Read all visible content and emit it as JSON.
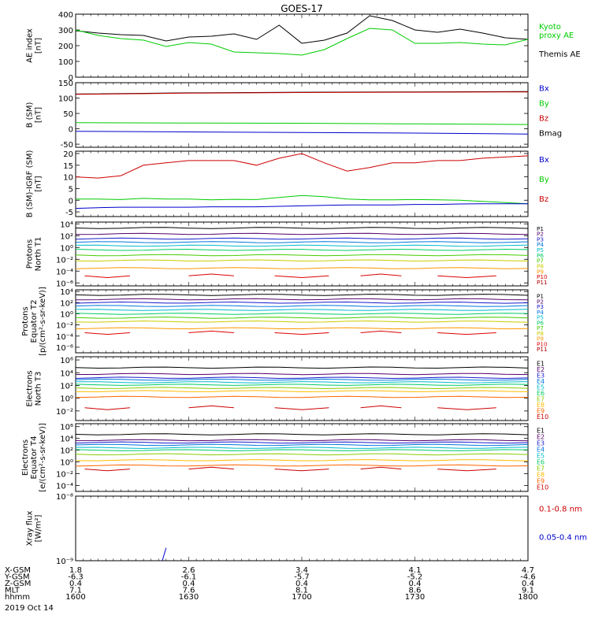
{
  "title": "GOES-17",
  "colors": {
    "black": "#000000",
    "blue": "#0000cc",
    "green": "#00cc00",
    "red": "#cc0000",
    "ch": [
      "#000000",
      "#55006a",
      "#1a1acc",
      "#0077dd",
      "#00bbcc",
      "#00cc66",
      "#44cc00",
      "#cccc00",
      "#ff9900",
      "#dd0000",
      "#aa0000"
    ],
    "ech": [
      "#000000",
      "#55006a",
      "#1a1acc",
      "#0077dd",
      "#00bbcc",
      "#00cc66",
      "#88cc00",
      "#ffbb00",
      "#ff6600",
      "#cc0000"
    ]
  },
  "time_axis": {
    "ticks": [
      "1600",
      "1630",
      "1700",
      "1730",
      "1800"
    ],
    "rows": [
      {
        "label": "X-GSM",
        "values": [
          "1.8",
          "2.6",
          "3.4",
          "4.1",
          "4.7"
        ]
      },
      {
        "label": "Y-GSM",
        "values": [
          "-6.3",
          "-6.1",
          "-5.7",
          "-5.2",
          "-4.6"
        ]
      },
      {
        "label": "Z-GSM",
        "values": [
          "0.4",
          "0.4",
          "0.4",
          "0.4",
          "0.4"
        ]
      },
      {
        "label": "MLT",
        "values": [
          "7.1",
          "7.6",
          "8.1",
          "8.6",
          "9.1"
        ]
      },
      {
        "label": "hhmm",
        "values": [
          "1600",
          "1630",
          "1700",
          "1730",
          "1800"
        ]
      }
    ],
    "date": "2019 Oct 14"
  },
  "chart_data": [
    {
      "type": "line",
      "ylabel": "AE index\n[nT]",
      "ylim": [
        0,
        400
      ],
      "yticks": [
        "0",
        "100",
        "200",
        "300",
        "400"
      ],
      "x": [
        1600,
        1606,
        1612,
        1618,
        1624,
        1630,
        1636,
        1642,
        1648,
        1654,
        1700,
        1706,
        1712,
        1718,
        1724,
        1730,
        1736,
        1742,
        1748,
        1754,
        1800
      ],
      "series": [
        {
          "name": "Themis AE",
          "color": "black",
          "values": [
            295,
            280,
            270,
            265,
            230,
            255,
            260,
            275,
            240,
            330,
            215,
            235,
            280,
            390,
            360,
            300,
            285,
            305,
            280,
            250,
            240
          ]
        },
        {
          "name": "Kyoto\nproxy AE",
          "color": "green",
          "values": [
            300,
            265,
            245,
            235,
            195,
            220,
            210,
            160,
            155,
            150,
            140,
            175,
            245,
            310,
            300,
            215,
            215,
            220,
            210,
            205,
            240
          ]
        }
      ],
      "legend": [
        {
          "text": "Kyoto\nproxy AE",
          "color": "green"
        },
        {
          "text": "Themis AE",
          "color": "black"
        }
      ]
    },
    {
      "type": "line",
      "ylabel": "B (SM)\n[nT]",
      "ylim": [
        -60,
        150
      ],
      "yticks": [
        "-50",
        "0",
        "50",
        "100",
        "150"
      ],
      "x": [
        1600,
        1630,
        1700,
        1730,
        1800
      ],
      "series": [
        {
          "name": "Bmag",
          "color": "black",
          "values": [
            113,
            117,
            119,
            120,
            121
          ]
        },
        {
          "name": "Bz",
          "color": "red",
          "values": [
            112,
            116,
            118,
            119,
            120
          ]
        },
        {
          "name": "By",
          "color": "green",
          "values": [
            20,
            19,
            18,
            16,
            14
          ]
        },
        {
          "name": "Bx",
          "color": "blue",
          "values": [
            -8,
            -10,
            -12,
            -14,
            -17
          ]
        }
      ],
      "legend": [
        {
          "text": "Bx",
          "color": "blue"
        },
        {
          "text": "By",
          "color": "green"
        },
        {
          "text": "Bz",
          "color": "red"
        },
        {
          "text": "Bmag",
          "color": "black"
        }
      ]
    },
    {
      "type": "line",
      "ylabel": "B (SM)-IGRF (SM)\n[nT]",
      "ylim": [
        -7,
        21
      ],
      "yticks": [
        "-5",
        "0",
        "5",
        "10",
        "15",
        "20"
      ],
      "x": [
        1600,
        1606,
        1612,
        1618,
        1624,
        1630,
        1636,
        1642,
        1648,
        1654,
        1700,
        1706,
        1712,
        1718,
        1724,
        1730,
        1736,
        1742,
        1748,
        1754,
        1800
      ],
      "series": [
        {
          "name": "Bz",
          "color": "red",
          "values": [
            10,
            9.5,
            10.5,
            15,
            16,
            17,
            17,
            17,
            15,
            18,
            20,
            16,
            12.5,
            14,
            16,
            16,
            17,
            17,
            18,
            18.5,
            19
          ]
        },
        {
          "name": "By",
          "color": "green",
          "values": [
            0.5,
            0.5,
            0.3,
            0.8,
            0.5,
            0.5,
            0.2,
            0.4,
            0.3,
            1.2,
            2,
            1.5,
            0.5,
            0.2,
            0.2,
            0.3,
            0.2,
            0,
            -0.5,
            -1,
            -1.5
          ]
        },
        {
          "name": "Bx",
          "color": "blue",
          "values": [
            -3.5,
            -3.2,
            -3,
            -3,
            -3,
            -3,
            -2.8,
            -2.8,
            -2.8,
            -2.6,
            -2.4,
            -2.2,
            -2,
            -2,
            -2,
            -1.8,
            -1.8,
            -1.6,
            -1.5,
            -1.5,
            -1.5
          ]
        }
      ],
      "legend": [
        {
          "text": "Bx",
          "color": "blue"
        },
        {
          "text": "By",
          "color": "green"
        },
        {
          "text": "Bz",
          "color": "red"
        }
      ]
    },
    {
      "type": "line",
      "log": true,
      "ylabel": "Protons\nNorth T1",
      "ylim": [
        -6.5,
        4.3
      ],
      "yticks": [
        "10⁴",
        "10²",
        "10⁰",
        "10⁻²",
        "10⁻⁴",
        "10⁻⁶"
      ],
      "ytick_exps": [
        4,
        2,
        0,
        -2,
        -4,
        -6
      ],
      "x": [
        1600,
        1800
      ],
      "series_exps": [
        3.3,
        2.3,
        1.5,
        0.9,
        0.3,
        -0.4,
        -1.3,
        -2.2,
        -3.5
      ],
      "gappy_exp": -4.8,
      "legend": [
        "P1",
        "P2",
        "P3",
        "P4",
        "P5",
        "P6",
        "P7",
        "P8",
        "P9",
        "P10",
        "P11"
      ]
    },
    {
      "type": "line",
      "log": true,
      "ylabel": "Protons\nEquator T2\n[p/(cm²-s-sr-keV)]",
      "ylim": [
        -7,
        4.3
      ],
      "yticks": [
        "10⁴",
        "10²",
        "10⁰",
        "10⁻²",
        "10⁻⁴",
        "10⁻⁶"
      ],
      "ytick_exps": [
        4,
        2,
        0,
        -2,
        -4,
        -6
      ],
      "x": [
        1600,
        1800
      ],
      "series_exps": [
        3.4,
        2.6,
        2,
        1.4,
        0.7,
        0,
        -0.7,
        -1.4,
        -2.6
      ],
      "gappy_exp": -3.4,
      "legend": [
        "P1",
        "P2",
        "P3",
        "P4",
        "P5",
        "P6",
        "P7",
        "P8",
        "P9",
        "P10",
        "P11"
      ]
    },
    {
      "type": "line",
      "log": true,
      "ylabel": "Electrons\nNorth T3",
      "ylim": [
        -3.5,
        6.5
      ],
      "yticks": [
        "10⁶",
        "10⁴",
        "10²",
        "10⁰",
        "10⁻²"
      ],
      "ytick_exps": [
        6,
        4,
        2,
        0,
        -2
      ],
      "x": [
        1600,
        1800
      ],
      "series_exps": [
        4.8,
        3.8,
        3.2,
        2.9,
        2.5,
        2.1,
        1.6,
        1.1,
        0.2
      ],
      "gappy_exp": -1.5,
      "legend": [
        "E1",
        "E2",
        "E3",
        "E4",
        "E5",
        "E6",
        "E7",
        "E8",
        "E9",
        "E10"
      ]
    },
    {
      "type": "line",
      "log": true,
      "ylabel": "Electrons\nEquator T4\n[e/(cm²-s-sr-keV)]",
      "ylim": [
        -5,
        6.5
      ],
      "yticks": [
        "10⁶",
        "10⁴",
        "10²",
        "10⁰",
        "10⁻²",
        "10⁻⁴"
      ],
      "ytick_exps": [
        6,
        4,
        2,
        0,
        -2,
        -4
      ],
      "x": [
        1600,
        1800
      ],
      "series_exps": [
        4.7,
        3.7,
        3.3,
        2.9,
        2.4,
        2,
        1.3,
        0.3,
        -0.6
      ],
      "gappy_exp": -1.2,
      "legend": [
        "E1",
        "E2",
        "E3",
        "E4",
        "E5",
        "E6",
        "E7",
        "E8",
        "E9",
        "E10"
      ]
    },
    {
      "type": "line",
      "log": true,
      "ylabel": "Xray flux\n[W/m²]",
      "ylim": [
        -9,
        -8
      ],
      "yticks": [
        "10⁻⁸",
        "10⁻⁹"
      ],
      "ytick_exps": [
        -8,
        -9
      ],
      "x": [
        1600,
        1800
      ],
      "series": [
        {
          "name": "0.05-0.4 nm",
          "color": "blue",
          "x": [
            1623,
            1624
          ],
          "values": [
            -9,
            -8.8
          ]
        }
      ],
      "legend": [
        {
          "text": "0.1-0.8 nm",
          "color": "red"
        },
        {
          "text": "0.05-0.4 nm",
          "color": "blue"
        }
      ]
    }
  ]
}
